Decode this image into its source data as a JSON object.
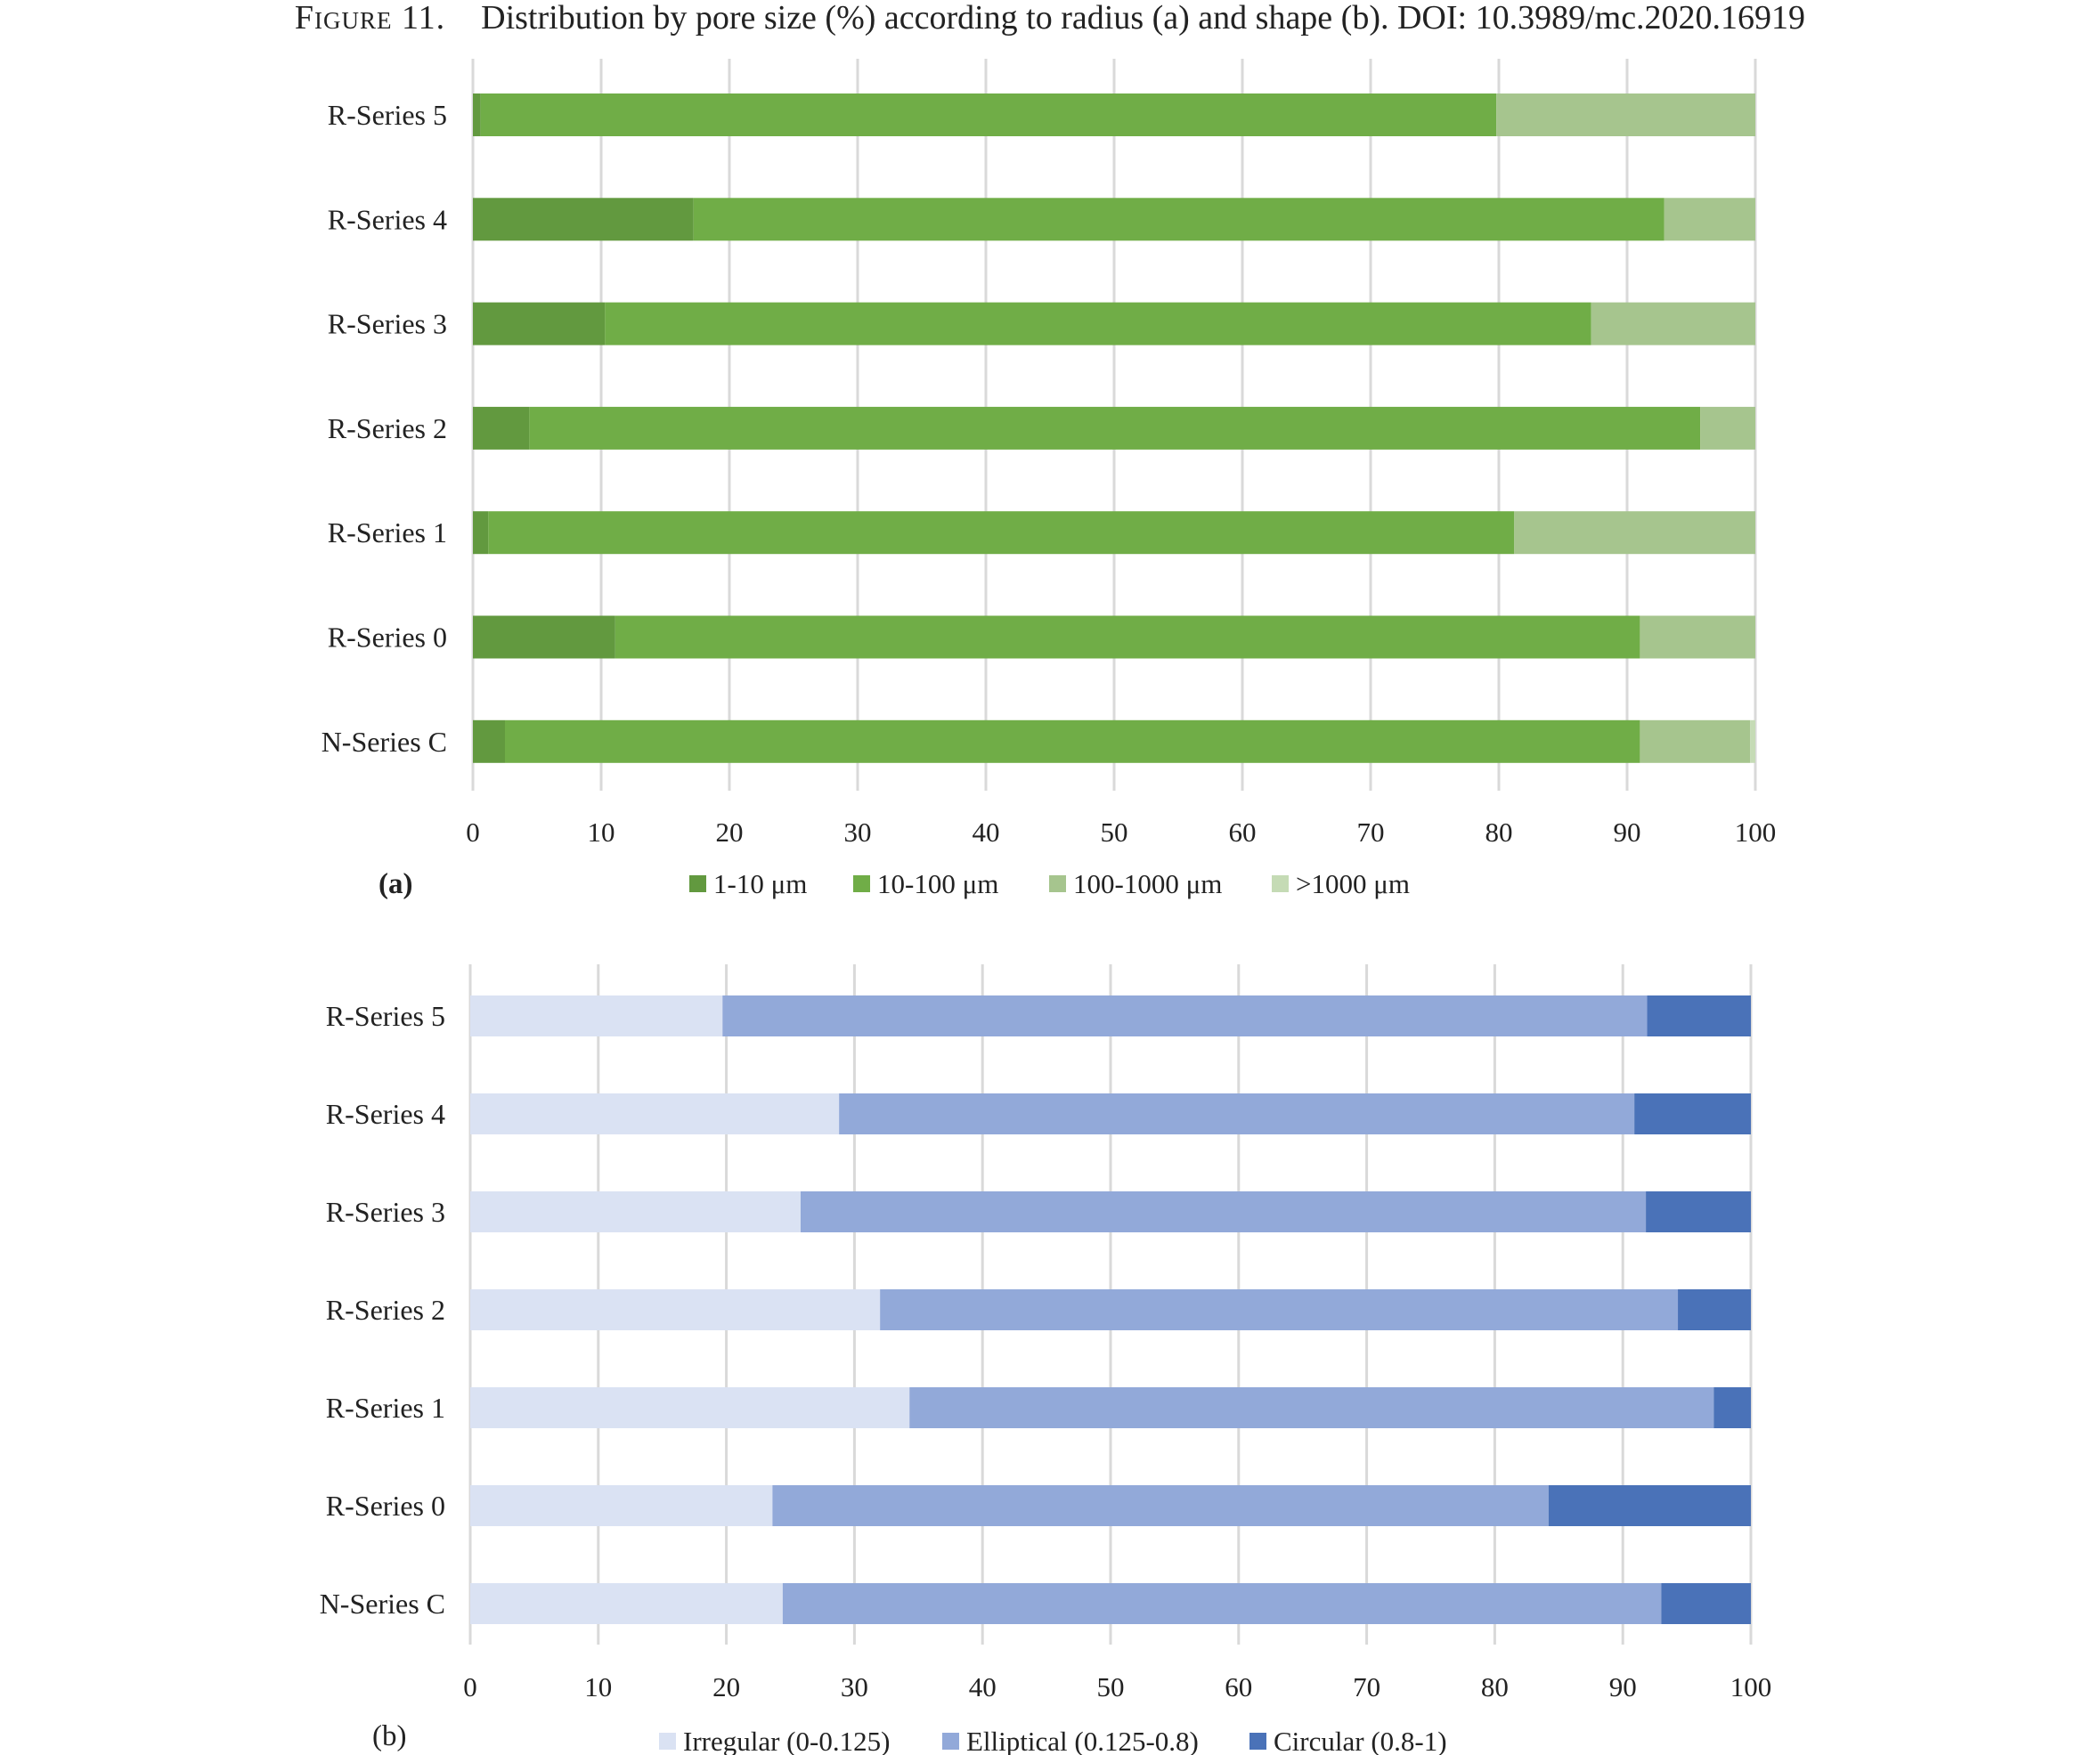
{
  "caption": {
    "figure": "Figure 11.",
    "text": "Distribution by pore size (%) according to radius (a) and shape (b). DOI: 10.3989/mc.2020.16919"
  },
  "chart_data": [
    {
      "type": "bar",
      "orientation": "horizontal",
      "stacked": true,
      "panel_label": "(a)",
      "categories": [
        "R-Series 5",
        "R-Series 4",
        "R-Series 3",
        "R-Series 2",
        "R-Series 1",
        "R-Series 0",
        "N-Series C"
      ],
      "series": [
        {
          "name": "1-10 μm",
          "color": "#62993f",
          "values": [
            0.6,
            17.2,
            10.3,
            4.4,
            1.2,
            11.1,
            2.5
          ]
        },
        {
          "name": "10-100 μm",
          "color": "#70ad47",
          "values": [
            79.2,
            75.7,
            76.9,
            91.3,
            80.0,
            79.9,
            88.5
          ]
        },
        {
          "name": "100-1000 μm",
          "color": "#a6c58e",
          "values": [
            20.2,
            7.1,
            12.8,
            4.3,
            18.8,
            9.0,
            8.6
          ]
        },
        {
          "name": ">1000 μm",
          "color": "#c5dbb5",
          "values": [
            0.0,
            0.0,
            0.0,
            0.0,
            0.0,
            0.0,
            0.4
          ]
        }
      ],
      "xlim": [
        0,
        100
      ],
      "xticks": [
        0,
        10,
        20,
        30,
        40,
        50,
        60,
        70,
        80,
        90,
        100
      ],
      "grid": true,
      "legend": "bottom"
    },
    {
      "type": "bar",
      "orientation": "horizontal",
      "stacked": true,
      "panel_label": "(b)",
      "categories": [
        "R-Series 5",
        "R-Series 4",
        "R-Series 3",
        "R-Series 2",
        "R-Series 1",
        "R-Series 0",
        "N-Series C"
      ],
      "series": [
        {
          "name": "Irregular (0-0.125)",
          "color": "#dae2f3",
          "values": [
            19.7,
            28.8,
            25.8,
            32.0,
            34.3,
            23.6,
            24.4
          ]
        },
        {
          "name": "Elliptical (0.125-0.8)",
          "color": "#92a9d9",
          "values": [
            72.2,
            62.1,
            66.0,
            62.3,
            62.8,
            60.6,
            68.6
          ]
        },
        {
          "name": "Circular (0.8-1)",
          "color": "#4a72b8",
          "values": [
            8.1,
            9.1,
            8.2,
            5.7,
            2.9,
            15.8,
            7.0
          ]
        }
      ],
      "xlim": [
        0,
        100
      ],
      "xticks": [
        0,
        10,
        20,
        30,
        40,
        50,
        60,
        70,
        80,
        90,
        100
      ],
      "grid": true,
      "legend": "bottom"
    }
  ]
}
